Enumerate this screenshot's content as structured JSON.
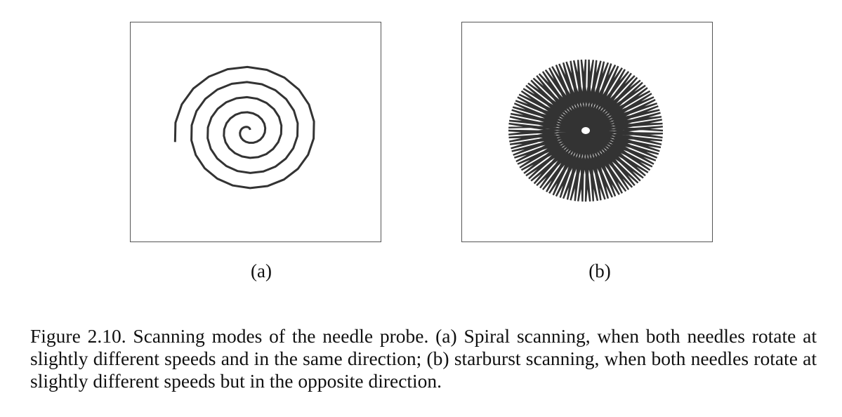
{
  "figure": {
    "panels": [
      {
        "id": "a",
        "label": "(a)",
        "pattern": "spiral"
      },
      {
        "id": "b",
        "label": "(b)",
        "pattern": "starburst"
      }
    ],
    "caption": "Figure 2.10. Scanning modes of the needle probe. (a) Spiral scanning, when both needles rotate at slightly different speeds and in the same direction; (b) starburst scanning, when both needles rotate at slightly different speeds but in the opposite direction.",
    "stroke_color": "#333333",
    "frame_color": "#555555"
  }
}
